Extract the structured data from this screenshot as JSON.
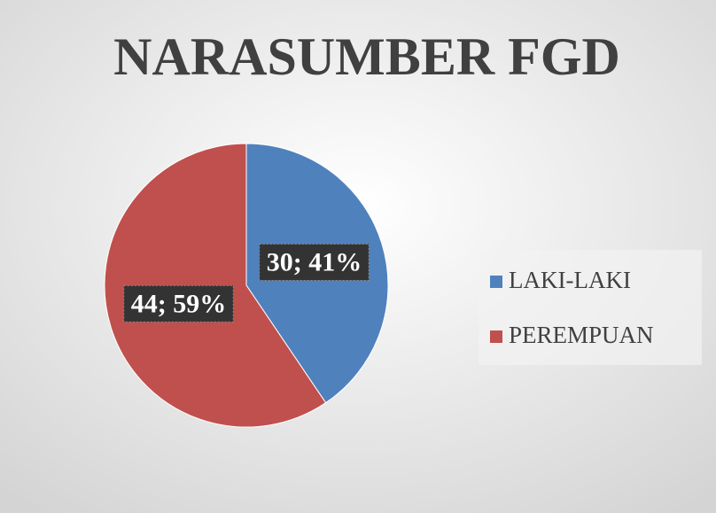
{
  "chart_data": {
    "type": "pie",
    "title": "NARASUMBER FGD",
    "categories": [
      "LAKI-LAKI",
      "PEREMPUAN"
    ],
    "values": [
      30,
      44
    ],
    "value_labels": [
      "30; 41%",
      "44; 59%"
    ],
    "colors": [
      "#4f81bd",
      "#c0504d"
    ],
    "legend": "right"
  }
}
